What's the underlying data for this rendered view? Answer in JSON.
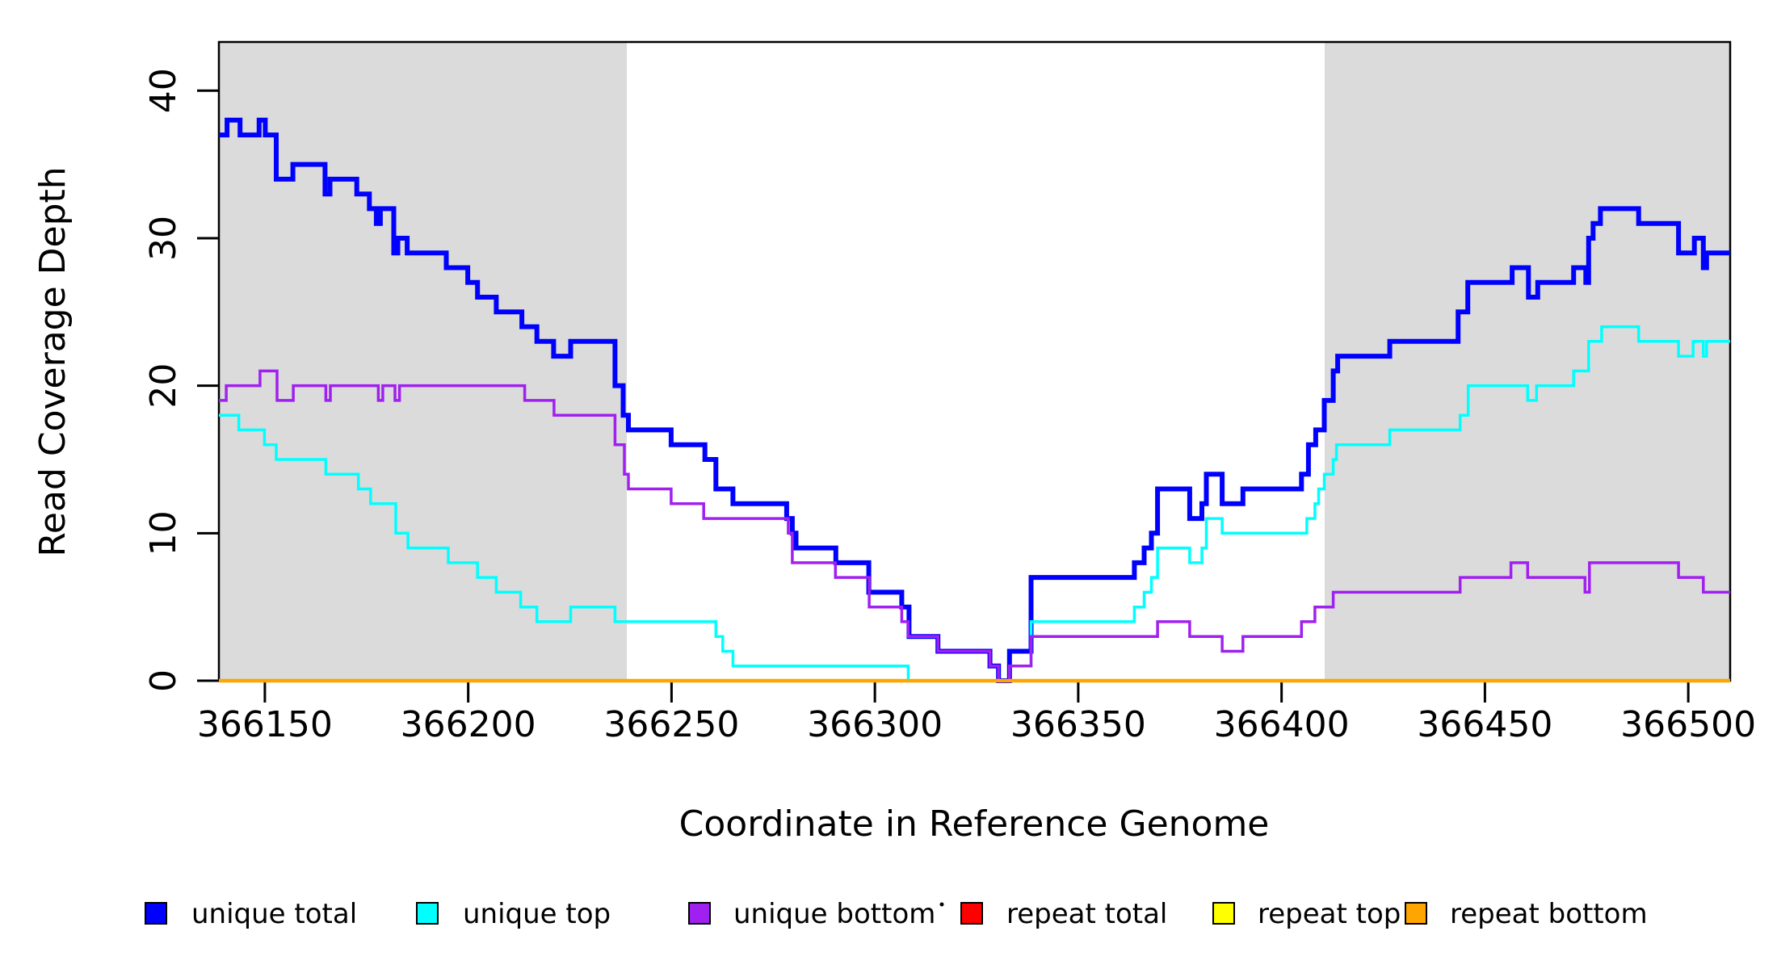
{
  "figure": {
    "xlabel": "Coordinate in Reference Genome",
    "ylabel": "Read Coverage Depth"
  },
  "chart_data": {
    "type": "line",
    "subtype": "step-coverage-plot",
    "title": "",
    "xlabel": "Coordinate in Reference Genome",
    "ylabel": "Read Coverage Depth",
    "xlim": [
      366138.7,
      366510.3
    ],
    "ylim": [
      0,
      43.3
    ],
    "grid": false,
    "x_ticks": [
      366150,
      366200,
      366250,
      366300,
      366350,
      366400,
      366450,
      366500
    ],
    "x_tick_labels": [
      "366150",
      "366200",
      "366250",
      "366300",
      "366350",
      "366400",
      "366450",
      "366500"
    ],
    "y_ticks": [
      0,
      10,
      20,
      30,
      40
    ],
    "y_tick_labels": [
      "0",
      "10",
      "20",
      "30",
      "40"
    ],
    "shaded_regions": [
      {
        "name": "left-unique-flank",
        "from": 366138.7,
        "to": 366239.0,
        "color": "#DBDBDB"
      },
      {
        "name": "right-unique-flank",
        "from": 366410.6,
        "to": 366510.3,
        "color": "#DBDBDB"
      }
    ],
    "series": [
      {
        "name": "unique total",
        "color": "#0000FF",
        "width": 6,
        "start": 366138.7,
        "steps": [
          [
            37,
            366140.7
          ],
          [
            38,
            366143.9
          ],
          [
            37,
            366148.6
          ],
          [
            38,
            366150.1
          ],
          [
            37,
            366152.8
          ],
          [
            34,
            366156.9
          ],
          [
            35,
            366164.8
          ],
          [
            33,
            366166.0
          ],
          [
            34,
            366172.6
          ],
          [
            33,
            366175.7
          ],
          [
            32,
            366177.4
          ],
          [
            31,
            366178.4
          ],
          [
            32,
            366181.7
          ],
          [
            29,
            366182.7
          ],
          [
            30,
            366185.0
          ],
          [
            29,
            366194.6
          ],
          [
            28,
            366199.9
          ],
          [
            27,
            366202.3
          ],
          [
            26,
            366206.9
          ],
          [
            25,
            366213.2
          ],
          [
            24,
            366216.9
          ],
          [
            23,
            366221.0
          ],
          [
            22,
            366225.2
          ],
          [
            23,
            366236.1
          ],
          [
            20,
            366238.1
          ],
          [
            18,
            366239.4
          ],
          [
            17,
            366249.9
          ],
          [
            16,
            366258.2
          ],
          [
            15,
            366260.9
          ],
          [
            13,
            366265.1
          ],
          [
            12,
            366278.3
          ],
          [
            11,
            366279.7
          ],
          [
            10,
            366280.6
          ],
          [
            9,
            366290.4
          ],
          [
            8,
            366298.5
          ],
          [
            6,
            366306.6
          ],
          [
            5,
            366308.4
          ],
          [
            3,
            366315.5
          ],
          [
            2,
            366328.3
          ],
          [
            1,
            366330.4
          ],
          [
            0,
            366333.1
          ],
          [
            2,
            366338.4
          ],
          [
            7,
            366363.8
          ],
          [
            8,
            366366.2
          ],
          [
            9,
            366368.0
          ],
          [
            10,
            366369.5
          ],
          [
            13,
            366377.4
          ],
          [
            11,
            366380.4
          ],
          [
            12,
            366381.5
          ],
          [
            14,
            366385.4
          ],
          [
            12,
            366390.5
          ],
          [
            13,
            366404.9
          ],
          [
            14,
            366406.6
          ],
          [
            16,
            366408.4
          ],
          [
            17,
            366410.5
          ],
          [
            19,
            366412.7
          ],
          [
            21,
            366413.8
          ],
          [
            22,
            366426.6
          ],
          [
            23,
            366443.4
          ],
          [
            25,
            366445.8
          ],
          [
            27,
            366456.7
          ],
          [
            28,
            366460.7
          ],
          [
            26,
            366463.0
          ],
          [
            27,
            366471.8
          ],
          [
            28,
            366474.8
          ],
          [
            27,
            366475.5
          ],
          [
            30,
            366476.6
          ],
          [
            31,
            366478.4
          ],
          [
            32,
            366487.8
          ],
          [
            31,
            366497.6
          ],
          [
            29,
            366501.5
          ],
          [
            30,
            366503.7
          ],
          [
            28,
            366504.5
          ],
          [
            29,
            366510.3
          ]
        ]
      },
      {
        "name": "unique top",
        "color": "#00FFFF",
        "width": 3.5,
        "start": 366138.7,
        "steps": [
          [
            18,
            366143.6
          ],
          [
            17,
            366149.9
          ],
          [
            16,
            366152.8
          ],
          [
            15,
            366165.0
          ],
          [
            14,
            366173.0
          ],
          [
            13,
            366176.0
          ],
          [
            12,
            366182.2
          ],
          [
            10,
            366185.2
          ],
          [
            9,
            366195.1
          ],
          [
            8,
            366202.3
          ],
          [
            7,
            366206.9
          ],
          [
            6,
            366212.9
          ],
          [
            5,
            366216.9
          ],
          [
            4,
            366225.2
          ],
          [
            5,
            366236.1
          ],
          [
            4,
            366260.9
          ],
          [
            3,
            366262.6
          ],
          [
            2,
            366265.1
          ],
          [
            1,
            366308.2
          ],
          [
            0,
            366333.1
          ],
          [
            1,
            366338.4
          ],
          [
            4,
            366363.8
          ],
          [
            5,
            366366.2
          ],
          [
            6,
            366368.0
          ],
          [
            7,
            366369.5
          ],
          [
            9,
            366377.4
          ],
          [
            8,
            366380.4
          ],
          [
            9,
            366381.5
          ],
          [
            11,
            366385.4
          ],
          [
            10,
            366406.2
          ],
          [
            11,
            366408.2
          ],
          [
            12,
            366409.1
          ],
          [
            13,
            366410.5
          ],
          [
            14,
            366412.7
          ],
          [
            15,
            366413.5
          ],
          [
            16,
            366426.6
          ],
          [
            17,
            366443.9
          ],
          [
            18,
            366445.9
          ],
          [
            20,
            366460.5
          ],
          [
            19,
            366462.7
          ],
          [
            20,
            366471.8
          ],
          [
            21,
            366475.5
          ],
          [
            23,
            366478.7
          ],
          [
            24,
            366487.8
          ],
          [
            23,
            366497.6
          ],
          [
            22,
            366501.2
          ],
          [
            23,
            366503.7
          ],
          [
            22,
            366504.5
          ],
          [
            23,
            366510.3
          ]
        ]
      },
      {
        "name": "unique bottom",
        "color": "#A020F0",
        "width": 3.5,
        "start": 366138.7,
        "steps": [
          [
            19,
            366140.5
          ],
          [
            20,
            366148.8
          ],
          [
            21,
            366153.0
          ],
          [
            19,
            366157.0
          ],
          [
            20,
            366165.0
          ],
          [
            19,
            366166.1
          ],
          [
            20,
            366177.9
          ],
          [
            19,
            366179.0
          ],
          [
            20,
            366182.0
          ],
          [
            19,
            366183.1
          ],
          [
            20,
            366213.9
          ],
          [
            19,
            366221.1
          ],
          [
            18,
            366236.1
          ],
          [
            16,
            366238.4
          ],
          [
            14,
            366239.4
          ],
          [
            13,
            366249.9
          ],
          [
            12,
            366257.9
          ],
          [
            11,
            366278.7
          ],
          [
            10,
            366279.7
          ],
          [
            8,
            366290.3
          ],
          [
            7,
            366298.6
          ],
          [
            5,
            366306.6
          ],
          [
            4,
            366308.2
          ],
          [
            3,
            366315.5
          ],
          [
            2,
            366328.3
          ],
          [
            1,
            366330.4
          ],
          [
            0,
            366333.1
          ],
          [
            1,
            366338.4
          ],
          [
            3,
            366369.5
          ],
          [
            4,
            366377.4
          ],
          [
            3,
            366385.4
          ],
          [
            2,
            366390.5
          ],
          [
            3,
            366404.9
          ],
          [
            4,
            366408.2
          ],
          [
            5,
            366412.7
          ],
          [
            6,
            366443.9
          ],
          [
            7,
            366456.4
          ],
          [
            8,
            366460.5
          ],
          [
            7,
            366474.6
          ],
          [
            6,
            366475.7
          ],
          [
            8,
            366497.6
          ],
          [
            7,
            366503.7
          ],
          [
            6,
            366510.3
          ]
        ]
      },
      {
        "name": "repeat total",
        "color": "#FF0000",
        "width": 3,
        "start": 366138.7,
        "steps": [
          [
            0,
            366510.3
          ]
        ]
      },
      {
        "name": "repeat top",
        "color": "#FFFF00",
        "width": 3,
        "start": 366138.7,
        "steps": [
          [
            0,
            366510.3
          ]
        ]
      },
      {
        "name": "repeat bottom",
        "color": "#FFA500",
        "width": 4.5,
        "start": 366138.7,
        "steps": [
          [
            0,
            366510.3
          ]
        ]
      }
    ]
  },
  "legend": {
    "entries": [
      {
        "label": "unique total",
        "color": "#0000FF"
      },
      {
        "label": "unique top",
        "color": "#00FFFF"
      },
      {
        "label": "unique bottom",
        "color": "#A020F0"
      },
      {
        "label": "repeat total",
        "color": "#FF0000"
      },
      {
        "label": "repeat top",
        "color": "#FFFF00"
      },
      {
        "label": "repeat bottom",
        "color": "#FFA500"
      }
    ]
  }
}
